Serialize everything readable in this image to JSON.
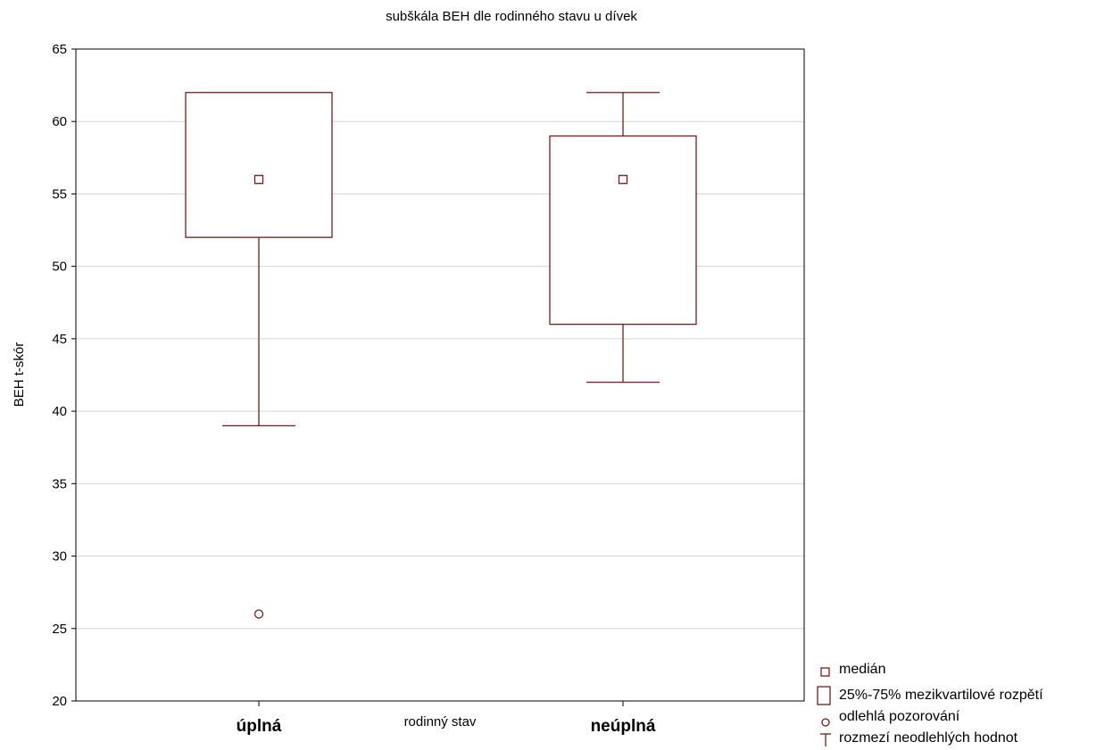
{
  "chart_data": {
    "type": "boxplot",
    "title": "subškála BEH dle rodinného stavu u dívek",
    "xlabel": "rodinný stav",
    "ylabel": "BEH t-skór",
    "ylim": [
      20,
      65
    ],
    "yticks": [
      20,
      25,
      30,
      35,
      40,
      45,
      50,
      55,
      60,
      65
    ],
    "grid": "horizontal",
    "categories": [
      "úplná",
      "neúplná"
    ],
    "boxes": [
      {
        "category": "úplná",
        "median": 56,
        "q1": 52,
        "q3": 62,
        "whisker_low": 39,
        "whisker_high": 62,
        "outliers": [
          26
        ]
      },
      {
        "category": "neúplná",
        "median": 56,
        "q1": 46,
        "q3": 59,
        "whisker_low": 42,
        "whisker_high": 62,
        "outliers": []
      }
    ],
    "legend": {
      "position": "bottom-right",
      "items": [
        {
          "symbol": "square-marker",
          "label": "medián"
        },
        {
          "symbol": "box",
          "label": "25%-75% mezikvartilové rozpětí"
        },
        {
          "symbol": "circle-marker",
          "label": "odlehlá pozorování"
        },
        {
          "symbol": "whisker",
          "label": "rozmezí neodlehlých hodnot"
        }
      ]
    },
    "colors": {
      "series": "#7b1a1a",
      "grid": "#d4d4d4",
      "frame": "#000000"
    }
  }
}
